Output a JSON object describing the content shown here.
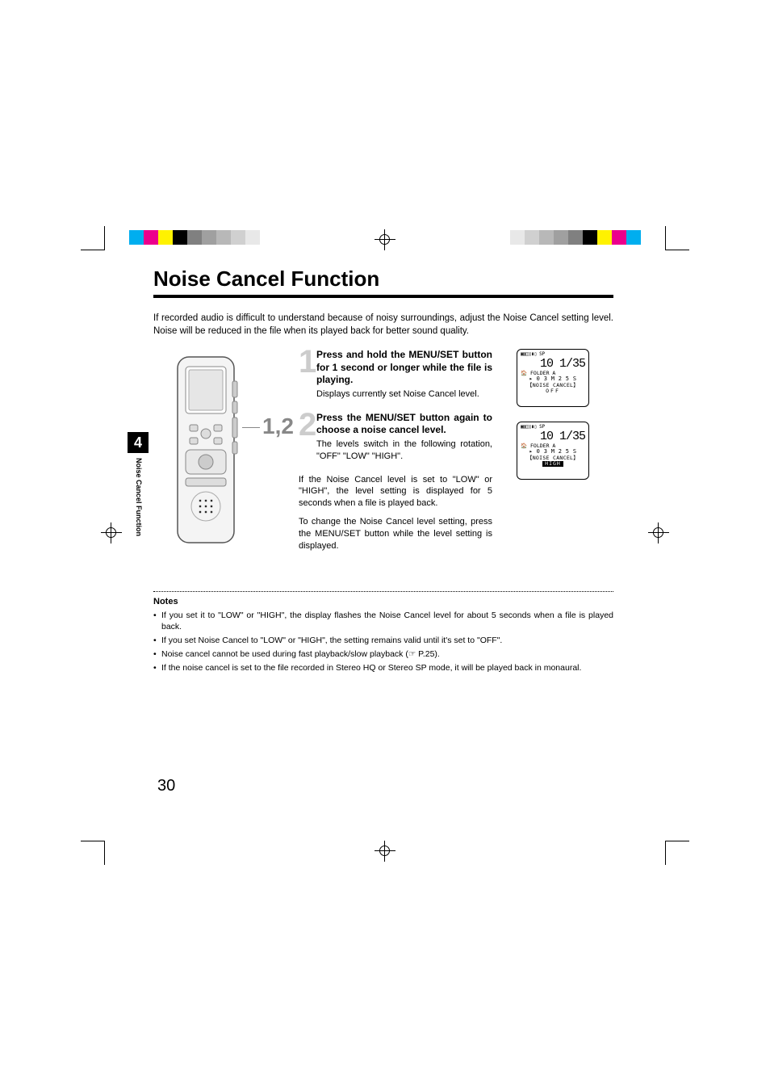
{
  "chapter_tab": {
    "number": "4",
    "label": "Noise Cancel Function"
  },
  "title": "Noise Cancel Function",
  "intro": "If recorded audio is difficult to understand because of noisy surroundings, adjust the Noise Cancel setting level. Noise will be reduced in the file when its played back for better sound quality.",
  "callout": "1,2",
  "steps": [
    {
      "num": "1",
      "head_pre": "Press and hold the ",
      "head_bold": "MENU/SET",
      "head_post": " button for 1 second or longer while the file is playing.",
      "desc": "Displays currently set Noise Cancel level."
    },
    {
      "num": "2",
      "head_pre": "Press the ",
      "head_bold": "MENU/SET",
      "head_post": " button again to choose a noise cancel level.",
      "desc": "The levels switch in the following rotation, \"OFF\" \"LOW\" \"HIGH\"."
    }
  ],
  "extra": [
    "If the Noise Cancel level is set to \"LOW\" or \"HIGH\", the level setting is displayed for 5 seconds when a file is played back.",
    "To change the Noise Cancel level setting, press the MENU/SET button while the level setting is displayed."
  ],
  "lcd": {
    "top_icon_row": "▣▥◫▯▮▯  SP",
    "big": "10 1/35",
    "folder": "🏠 FOLDER A",
    "time": "▸ 0 3 M 2 5 S",
    "nc": "【NOISE CANCEL】",
    "states": [
      "OFF",
      "HIGH"
    ]
  },
  "notes_head": "Notes",
  "notes": [
    "If you set it to \"LOW\" or \"HIGH\", the display flashes the Noise Cancel level for about 5 seconds when a file is played back.",
    "If you set Noise Cancel to \"LOW\" or \"HIGH\", the setting remains valid until it's set to \"OFF\".",
    "Noise cancel cannot be used during fast playback/slow playback (☞ P.25).",
    "If the noise cancel is set to the file recorded in Stereo HQ or Stereo SP mode, it will be played back in monaural."
  ],
  "page_number": "30",
  "colorbar_left": [
    "#00aeef",
    "#ec008c",
    "#fff200",
    "#000000",
    "#808080",
    "#a0a0a0",
    "#b8b8b8",
    "#d0d0d0",
    "#e8e8e8",
    "#ffffff"
  ],
  "colorbar_right": [
    "#ffffff",
    "#e8e8e8",
    "#d0d0d0",
    "#b8b8b8",
    "#a0a0a0",
    "#808080",
    "#000000",
    "#fff200",
    "#ec008c",
    "#00aeef"
  ]
}
